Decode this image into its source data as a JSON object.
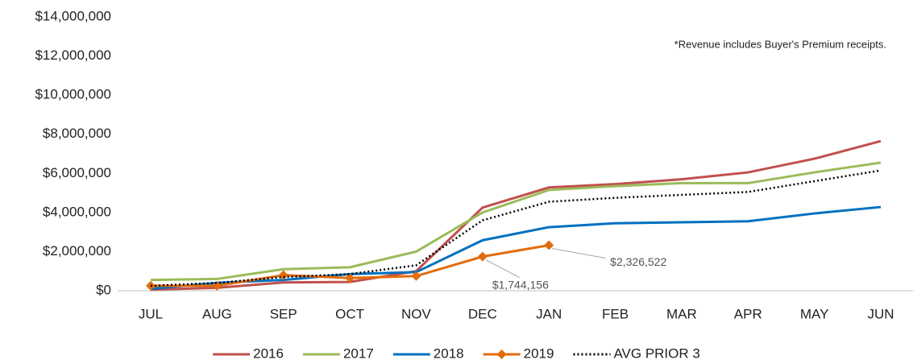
{
  "chart_data": {
    "type": "line",
    "annotation": "*Revenue includes Buyer's Premium receipts.",
    "categories": [
      "JUL",
      "AUG",
      "SEP",
      "OCT",
      "NOV",
      "DEC",
      "JAN",
      "FEB",
      "MAR",
      "APR",
      "MAY",
      "JUN"
    ],
    "series": [
      {
        "name": "2016",
        "color": "#c0504d",
        "values": [
          50000,
          150000,
          420000,
          450000,
          1000000,
          4250000,
          5280000,
          5450000,
          5700000,
          6050000,
          6750000,
          7650000
        ]
      },
      {
        "name": "2017",
        "color": "#9bbb59",
        "values": [
          550000,
          600000,
          1100000,
          1200000,
          2000000,
          4000000,
          5150000,
          5350000,
          5500000,
          5500000,
          6050000,
          6550000
        ]
      },
      {
        "name": "2018",
        "color": "#0070c0",
        "values": [
          100000,
          400000,
          550000,
          850000,
          950000,
          2580000,
          3250000,
          3450000,
          3500000,
          3550000,
          3950000,
          4280000
        ]
      },
      {
        "name": "2019",
        "color": "#e46c0a",
        "marker": "diamond",
        "values": [
          250000,
          250000,
          800000,
          650000,
          750000,
          1744156,
          2326522,
          null,
          null,
          null,
          null,
          null
        ],
        "value_labels": [
          null,
          null,
          null,
          null,
          null,
          "$1,744,156",
          "$2,326,522",
          null,
          null,
          null,
          null,
          null
        ]
      },
      {
        "name": "AVG PRIOR 3",
        "color": "#000000",
        "dash": "dotted",
        "values": [
          250000,
          400000,
          700000,
          850000,
          1300000,
          3600000,
          4550000,
          4750000,
          4900000,
          5050000,
          5600000,
          6150000
        ]
      }
    ],
    "ylim": [
      0,
      14000000
    ],
    "yticks": [
      {
        "value": 0,
        "label": "$0"
      },
      {
        "value": 2000000,
        "label": "$2,000,000"
      },
      {
        "value": 4000000,
        "label": "$4,000,000"
      },
      {
        "value": 6000000,
        "label": "$6,000,000"
      },
      {
        "value": 8000000,
        "label": "$8,000,000"
      },
      {
        "value": 10000000,
        "label": "$10,000,000"
      },
      {
        "value": 12000000,
        "label": "$12,000,000"
      },
      {
        "value": 14000000,
        "label": "$14,000,000"
      }
    ],
    "grid": false,
    "legend": "bottom"
  }
}
